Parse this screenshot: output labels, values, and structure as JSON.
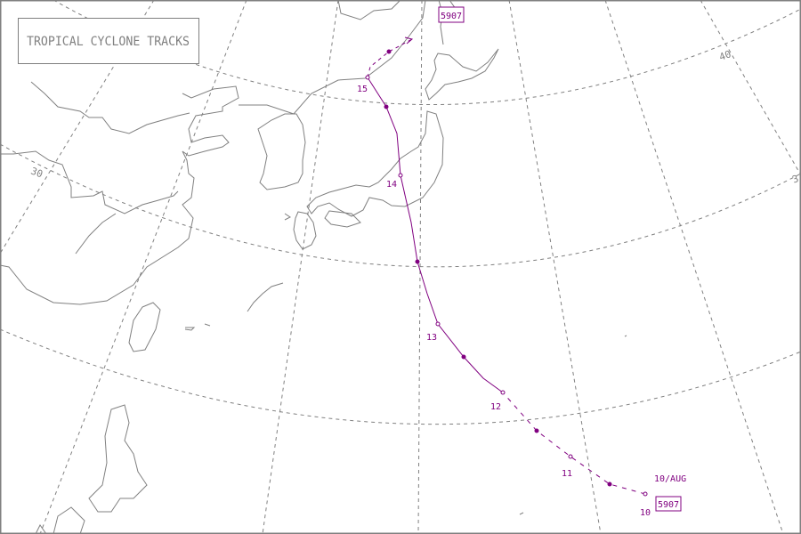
{
  "title": "TROPICAL CYCLONE TRACKS",
  "storm": {
    "id": "5907",
    "start_label": "10/AUG",
    "day_labels": [
      "10",
      "11",
      "12",
      "13",
      "14",
      "15"
    ]
  },
  "grid_labels": [
    "30",
    "40",
    "3"
  ],
  "colors": {
    "track": "#800080",
    "coast": "#808080",
    "grid": "#808080",
    "frame": "#808080"
  }
}
